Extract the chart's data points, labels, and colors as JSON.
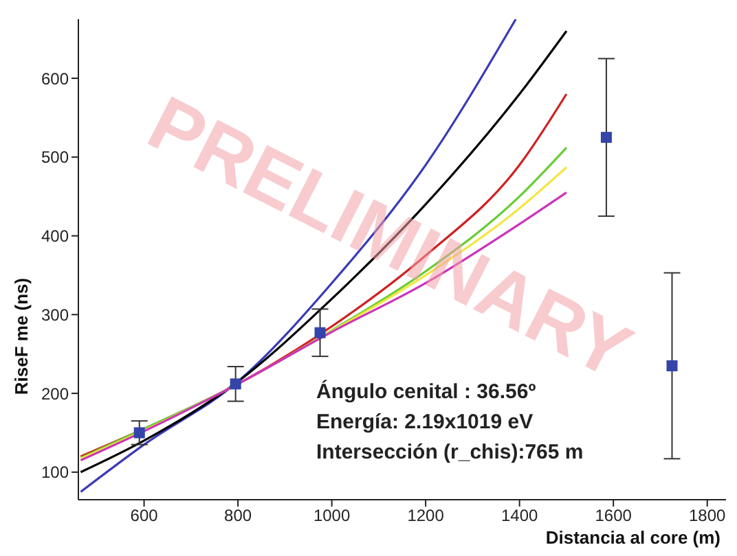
{
  "chart_data": {
    "type": "scatter",
    "xlabel": "Distancia al core (m)",
    "ylabel": "RiseF me (ns)",
    "xlim": [
      460,
      1840
    ],
    "xticks": [
      600,
      800,
      1000,
      1200,
      1400,
      1600,
      1800
    ],
    "ylim": [
      65,
      675
    ],
    "yticks": [
      100,
      200,
      300,
      400,
      500,
      600
    ],
    "grid": false,
    "legend": false,
    "annotations": [
      "Ángulo cenital : 36.56º",
      "Energía: 2.19x1019 eV",
      "Intersección (r_chis):765 m",
      "PRELIMINARY"
    ],
    "series": [
      {
        "type": "line",
        "color": "#3a3ab8",
        "x": [
          465,
          600,
          800,
          1000,
          1200,
          1392
        ],
        "values": [
          75,
          135,
          215,
          340,
          490,
          675
        ]
      },
      {
        "type": "line",
        "color": "#000000",
        "x": [
          465,
          600,
          800,
          1000,
          1200,
          1400,
          1500
        ],
        "values": [
          100,
          140,
          215,
          320,
          440,
          580,
          660
        ]
      },
      {
        "type": "line",
        "color": "#d02020",
        "x": [
          465,
          600,
          800,
          1000,
          1200,
          1400,
          1500
        ],
        "values": [
          120,
          155,
          212,
          285,
          375,
          490,
          580
        ]
      },
      {
        "type": "line",
        "color": "#66cc33",
        "x": [
          465,
          600,
          800,
          1000,
          1200,
          1400,
          1500
        ],
        "values": [
          118,
          155,
          212,
          280,
          355,
          450,
          512
        ]
      },
      {
        "type": "line",
        "color": "#f2e640",
        "x": [
          465,
          600,
          800,
          1000,
          1200,
          1400,
          1500
        ],
        "values": [
          117,
          153,
          212,
          279,
          350,
          435,
          487
        ]
      },
      {
        "type": "line",
        "color": "#cc33bb",
        "x": [
          465,
          600,
          800,
          1000,
          1200,
          1400,
          1500
        ],
        "values": [
          115,
          152,
          212,
          278,
          340,
          415,
          455
        ]
      },
      {
        "type": "scatter",
        "marker": "square",
        "color": "#3344aa",
        "x": [
          590,
          795,
          975,
          1585,
          1725
        ],
        "values": [
          150,
          212,
          277,
          525,
          235
        ],
        "errors": [
          15,
          22,
          30,
          100,
          118
        ]
      }
    ]
  }
}
